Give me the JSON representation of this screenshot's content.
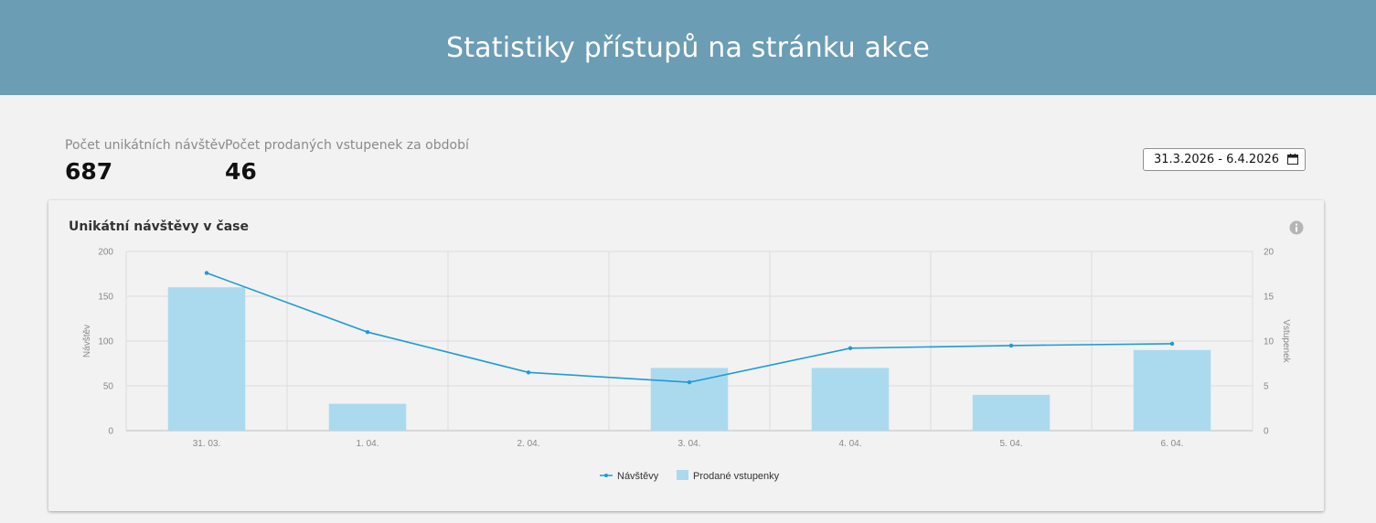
{
  "header": {
    "title": "Statistiky přístupů na stránku akce"
  },
  "stats": [
    {
      "label": "Počet unikátních návštěv",
      "value": "687"
    },
    {
      "label": "Počet prodaných vstupenek za období",
      "value": "46"
    }
  ],
  "date_range": {
    "value": "31.3.2026 - 6.4.2026",
    "icon": "calendar-icon"
  },
  "card": {
    "title": "Unikátní návštěvy v čase",
    "info_icon": "info-icon"
  },
  "chart_data": {
    "type": "bar",
    "title": "Unikátní návštěvy v čase",
    "categories": [
      "31. 03.",
      "1. 04.",
      "2. 04.",
      "3. 04.",
      "4. 04.",
      "5. 04.",
      "6. 04."
    ],
    "y_left": {
      "label": "Návštěv",
      "ticks": [
        0,
        50,
        100,
        150,
        200
      ],
      "range": [
        0,
        200
      ]
    },
    "y_right": {
      "label": "Vstupenek",
      "ticks": [
        0,
        5,
        10,
        15,
        20
      ],
      "range": [
        0,
        20
      ]
    },
    "series": [
      {
        "name": "Návštěvy",
        "type": "line",
        "axis": "left",
        "color": "#1e9bd7",
        "values": [
          176,
          110,
          65,
          54,
          92,
          95,
          97
        ]
      },
      {
        "name": "Prodané vstupenky",
        "type": "bar",
        "axis": "right",
        "color": "#abdaef",
        "values": [
          16,
          3,
          0,
          7,
          7,
          4,
          9
        ]
      }
    ],
    "grid": true,
    "legend": "bottom-center"
  }
}
